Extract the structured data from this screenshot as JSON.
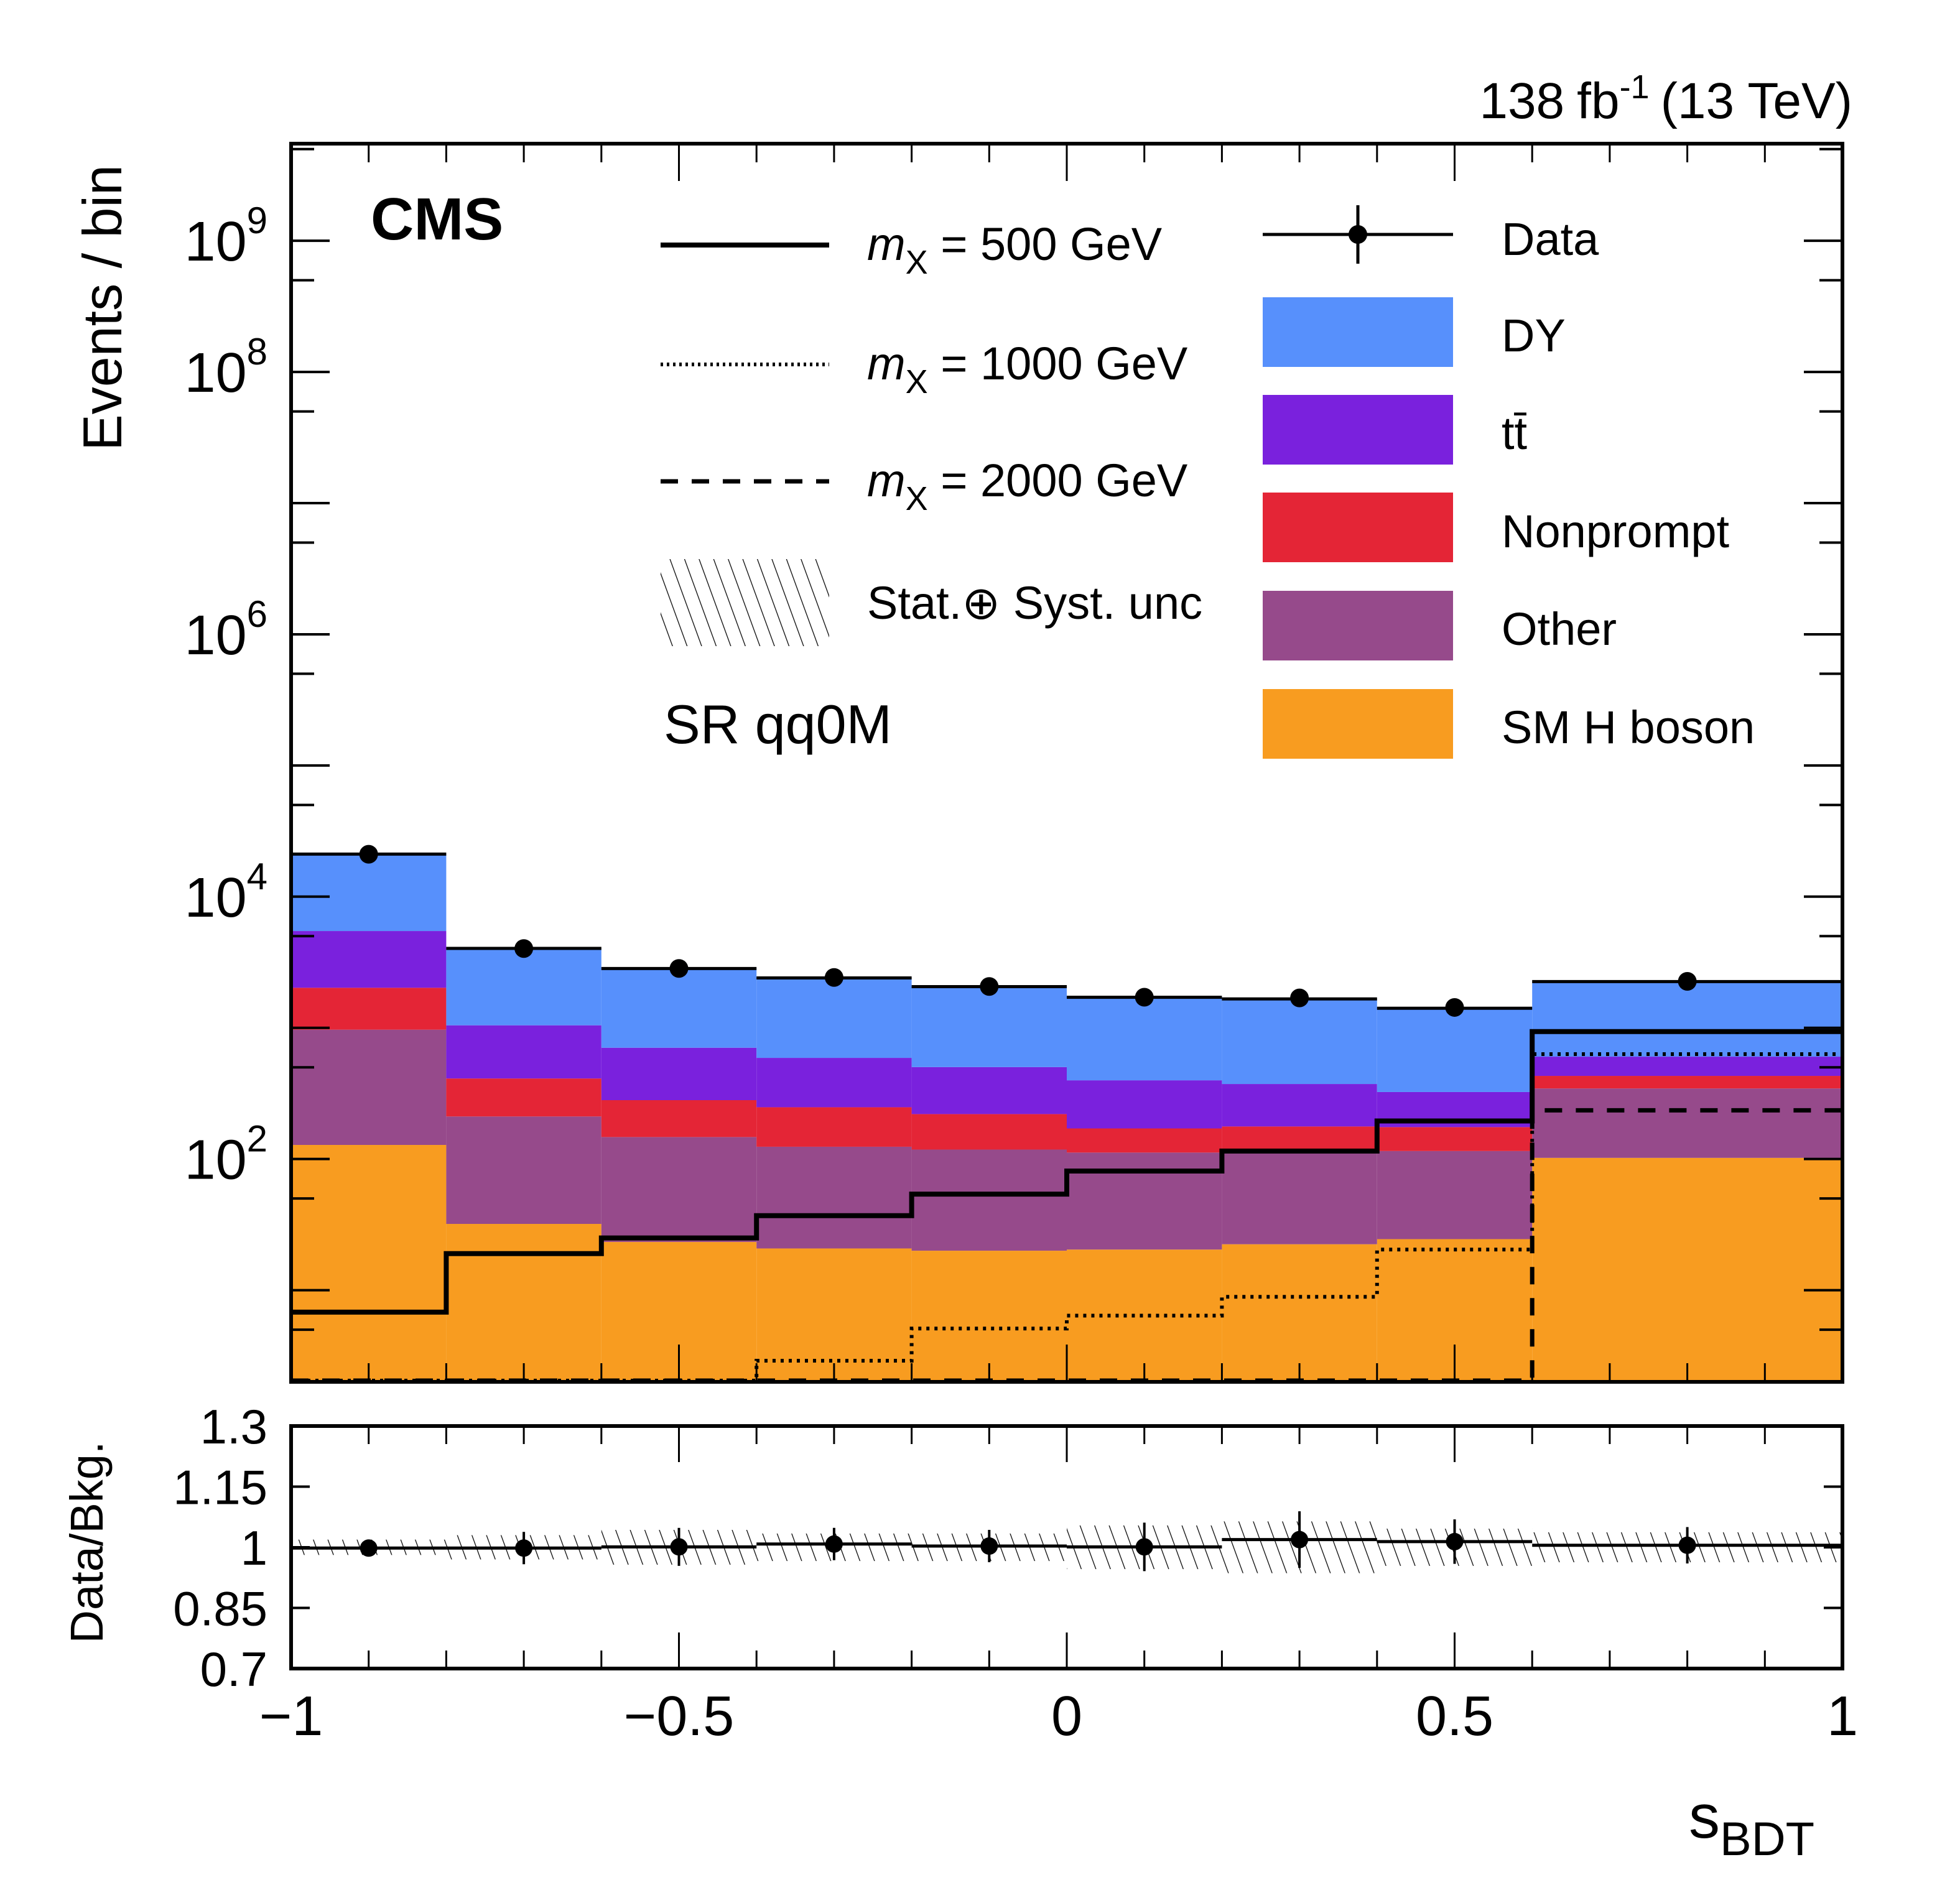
{
  "chart_data": {
    "type": "bar",
    "subtype": "stacked-histogram-with-ratio",
    "experiment_label": "CMS",
    "lumi_label": {
      "value": "138",
      "unit": "fb",
      "exponent": "-1",
      "energy": "(13 TeV)"
    },
    "region_label": "SR qq0M",
    "xlabel": {
      "main": "s",
      "sub": "BDT"
    },
    "ylabel": "Events / bin",
    "ratio_ylabel": "Data/Bkg.",
    "xlim": [
      -1,
      1
    ],
    "ylim": [
      2,
      5500000000.0
    ],
    "yscale": "log",
    "ratio_ylim": [
      0.7,
      1.3
    ],
    "x_ticks": [
      {
        "value": -1,
        "label": "−1"
      },
      {
        "value": -0.5,
        "label": "−0.5"
      },
      {
        "value": 0,
        "label": "0"
      },
      {
        "value": 0.5,
        "label": "0.5"
      },
      {
        "value": 1,
        "label": "1"
      }
    ],
    "y_ticks": [
      {
        "exp": 2,
        "base": "10",
        "sup": "2"
      },
      {
        "exp": 4,
        "base": "10",
        "sup": "4"
      },
      {
        "exp": 6,
        "base": "10",
        "sup": "6"
      },
      {
        "exp": 8,
        "base": "10",
        "sup": "8"
      },
      {
        "exp": 9,
        "base": "10",
        "sup": "9"
      }
    ],
    "ratio_ticks": [
      {
        "value": 1.3,
        "label": "1.3"
      },
      {
        "value": 1.15,
        "label": "1.15"
      },
      {
        "value": 1.0,
        "label": "1"
      },
      {
        "value": 0.85,
        "label": "0.85"
      },
      {
        "value": 0.7,
        "label": "0.7"
      }
    ],
    "bin_edges": [
      -1,
      -0.8,
      -0.6,
      -0.4,
      -0.2,
      0,
      0.2,
      0.4,
      0.6,
      1.0
    ],
    "stack_order_bottom_to_top": [
      "SM H boson",
      "Other",
      "Nonprompt",
      "tt̄",
      "DY"
    ],
    "series": [
      {
        "name": "SM H boson",
        "color": "#f89c20",
        "values": [
          128,
          32,
          23.3,
          20.8,
          20,
          20.4,
          22.4,
          24.5,
          102
        ]
      },
      {
        "name": "Other",
        "color": "#964a8b",
        "values": [
          840,
          179,
          123.7,
          103.2,
          98,
          91.6,
          89.6,
          90.5,
          243
        ]
      },
      {
        "name": "Nonprompt",
        "color": "#e42536",
        "values": [
          1052,
          200,
          134,
          124,
          102,
          59,
          65,
          60,
          85
        ]
      },
      {
        "name": "tt̄",
        "color": "#7a21dd",
        "values": [
          3450,
          634,
          424,
          342,
          282,
          227,
          196,
          149,
          173
        ]
      },
      {
        "name": "DY",
        "color": "#5790fc",
        "values": [
          15630,
          2985,
          2125,
          1810,
          1560,
          1312,
          1287,
          1086,
          1647
        ]
      }
    ],
    "total_background": [
      21100,
      4030,
      2830,
      2400,
      2060,
      1710,
      1660,
      1410,
      2250
    ],
    "data": {
      "name": "Data",
      "x": [
        -0.9,
        -0.7,
        -0.5,
        -0.3,
        -0.1,
        0.1,
        0.3,
        0.5,
        0.8
      ],
      "values": [
        21050,
        4020,
        2835,
        2420,
        2065,
        1712,
        1690,
        1430,
        2260
      ]
    },
    "signals": [
      {
        "name": "m_X = 500 GeV",
        "style": "solid",
        "values": [
          6.8,
          19,
          25,
          37,
          54,
          81,
          115,
          195,
          936
        ]
      },
      {
        "name": "m_X = 1000 GeV",
        "style": "dotted",
        "values": [
          0.5,
          0.5,
          0.5,
          2.9,
          5.1,
          6.4,
          8.9,
          20.4,
          630
        ]
      },
      {
        "name": "m_X = 2000 GeV",
        "style": "dashed",
        "values": [
          0.5,
          0.5,
          0.5,
          0.5,
          0.5,
          0.5,
          0.5,
          0.5,
          235
        ]
      }
    ],
    "ratio": {
      "values": [
        0.998,
        0.998,
        1.001,
        1.008,
        1.003,
        1.001,
        1.019,
        1.014,
        1.005
      ],
      "data_err": [
        0.006,
        0.04,
        0.047,
        0.04,
        0.04,
        0.06,
        0.07,
        0.055,
        0.045
      ],
      "unc_band": [
        0.019,
        0.03,
        0.043,
        0.034,
        0.034,
        0.054,
        0.064,
        0.046,
        0.037
      ]
    },
    "legend": {
      "placement": "top",
      "left_column": [
        {
          "label_pre": "m",
          "label_sub": "X",
          "label_post": " = 500 GeV",
          "style": "solid"
        },
        {
          "label_pre": "m",
          "label_sub": "X",
          "label_post": " = 1000 GeV",
          "style": "dotted"
        },
        {
          "label_pre": "m",
          "label_sub": "X",
          "label_post": " = 2000 GeV",
          "style": "dashed"
        },
        {
          "label": "Stat.⊕ Syst. unc",
          "style": "hatch"
        }
      ],
      "right_column": [
        {
          "label": "Data",
          "style": "marker"
        },
        {
          "label": "DY",
          "color": "#5790fc"
        },
        {
          "label": "tt̄",
          "color": "#7a21dd"
        },
        {
          "label": "Nonprompt",
          "color": "#e42536"
        },
        {
          "label": "Other",
          "color": "#964a8b"
        },
        {
          "label": "SM H boson",
          "color": "#f89c20"
        }
      ]
    }
  }
}
